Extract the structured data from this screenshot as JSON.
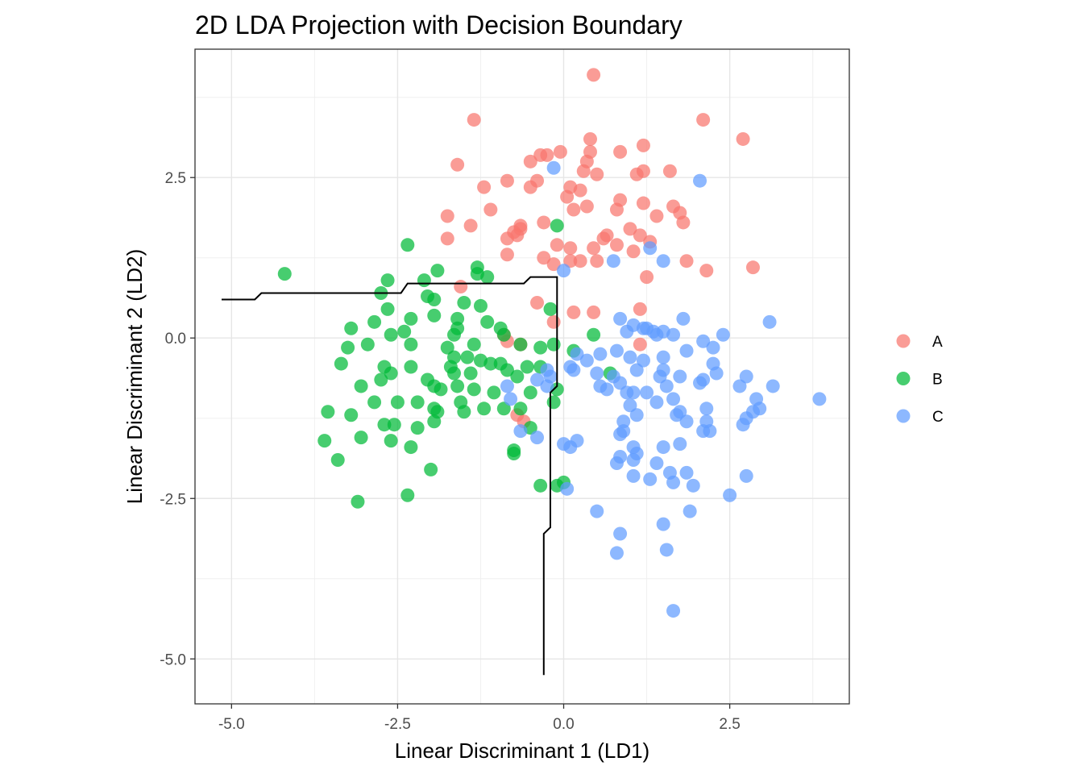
{
  "chart_data": {
    "type": "scatter",
    "title": "2D LDA Projection with Decision Boundary",
    "xlabel": "Linear Discriminant 1 (LD1)",
    "ylabel": "Linear Discriminant 2 (LD2)",
    "xlim": [
      -5.55,
      4.3
    ],
    "ylim": [
      -5.7,
      4.5
    ],
    "x_ticks": [
      -5.0,
      -2.5,
      0.0,
      2.5
    ],
    "x_tick_labels": [
      "-5.0",
      "-2.5",
      "0.0",
      "2.5"
    ],
    "y_ticks": [
      -5.0,
      -2.5,
      0.0,
      2.5
    ],
    "y_tick_labels": [
      "-5.0",
      "-2.5",
      "0.0",
      "2.5"
    ],
    "grid": true,
    "legend_position": "right",
    "series": [
      {
        "name": "A",
        "color": "#F8766D",
        "points": [
          [
            0.45,
            4.1
          ],
          [
            -1.35,
            3.4
          ],
          [
            2.1,
            3.4
          ],
          [
            2.7,
            3.1
          ],
          [
            0.4,
            3.1
          ],
          [
            1.2,
            3.0
          ],
          [
            0.85,
            2.9
          ],
          [
            0.4,
            2.9
          ],
          [
            -0.05,
            2.9
          ],
          [
            -0.35,
            2.85
          ],
          [
            -0.25,
            2.85
          ],
          [
            -0.5,
            2.75
          ],
          [
            0.35,
            2.75
          ],
          [
            -1.6,
            2.7
          ],
          [
            0.3,
            2.6
          ],
          [
            0.5,
            2.55
          ],
          [
            1.1,
            2.55
          ],
          [
            1.2,
            2.6
          ],
          [
            1.6,
            2.6
          ],
          [
            -0.85,
            2.45
          ],
          [
            -0.5,
            2.35
          ],
          [
            -0.4,
            2.45
          ],
          [
            -1.2,
            2.35
          ],
          [
            0.1,
            2.35
          ],
          [
            0.25,
            2.3
          ],
          [
            0.05,
            2.2
          ],
          [
            0.35,
            2.05
          ],
          [
            0.85,
            2.15
          ],
          [
            0.8,
            2.0
          ],
          [
            1.2,
            2.1
          ],
          [
            1.65,
            2.05
          ],
          [
            1.75,
            1.95
          ],
          [
            -1.1,
            2.0
          ],
          [
            0.15,
            2.0
          ],
          [
            -1.75,
            1.9
          ],
          [
            1.4,
            1.9
          ],
          [
            1.8,
            1.8
          ],
          [
            -1.4,
            1.75
          ],
          [
            -0.3,
            1.8
          ],
          [
            -0.65,
            1.75
          ],
          [
            -0.75,
            1.65
          ],
          [
            -0.65,
            1.7
          ],
          [
            -0.7,
            1.6
          ],
          [
            -0.85,
            1.55
          ],
          [
            0.6,
            1.55
          ],
          [
            0.65,
            1.6
          ],
          [
            1.0,
            1.7
          ],
          [
            1.15,
            1.6
          ],
          [
            1.3,
            1.5
          ],
          [
            -1.75,
            1.55
          ],
          [
            -0.1,
            1.45
          ],
          [
            0.1,
            1.4
          ],
          [
            0.45,
            1.4
          ],
          [
            0.8,
            1.45
          ],
          [
            1.05,
            1.35
          ],
          [
            -0.85,
            1.3
          ],
          [
            -0.3,
            1.25
          ],
          [
            -0.15,
            1.15
          ],
          [
            0.1,
            1.2
          ],
          [
            0.25,
            1.2
          ],
          [
            0.5,
            1.2
          ],
          [
            1.85,
            1.2
          ],
          [
            2.85,
            1.1
          ],
          [
            2.15,
            1.05
          ],
          [
            1.25,
            0.95
          ],
          [
            -1.55,
            0.8
          ],
          [
            0.15,
            0.4
          ],
          [
            -0.4,
            0.55
          ],
          [
            0.45,
            0.4
          ],
          [
            1.15,
            0.45
          ],
          [
            -0.15,
            0.25
          ],
          [
            -0.9,
            0.05
          ],
          [
            -0.85,
            -0.05
          ],
          [
            -0.65,
            -0.1
          ],
          [
            1.15,
            -0.1
          ],
          [
            -0.6,
            -1.3
          ],
          [
            -0.7,
            -1.2
          ]
        ]
      },
      {
        "name": "B",
        "color": "#00BA38",
        "points": [
          [
            -4.2,
            1.0
          ],
          [
            -2.35,
            1.45
          ],
          [
            -0.1,
            1.75
          ],
          [
            -1.3,
            1.1
          ],
          [
            -1.9,
            1.05
          ],
          [
            -2.65,
            0.9
          ],
          [
            -2.1,
            0.9
          ],
          [
            -1.15,
            0.95
          ],
          [
            -1.3,
            1.0
          ],
          [
            -2.75,
            0.7
          ],
          [
            -2.05,
            0.65
          ],
          [
            -1.95,
            0.6
          ],
          [
            -2.65,
            0.45
          ],
          [
            -1.5,
            0.55
          ],
          [
            -1.25,
            0.5
          ],
          [
            -0.2,
            0.45
          ],
          [
            -2.3,
            0.3
          ],
          [
            -2.85,
            0.25
          ],
          [
            -2.4,
            0.1
          ],
          [
            -1.95,
            0.35
          ],
          [
            -1.6,
            0.3
          ],
          [
            -1.6,
            0.15
          ],
          [
            -3.2,
            0.15
          ],
          [
            -2.6,
            0.05
          ],
          [
            -1.15,
            0.25
          ],
          [
            -0.95,
            0.15
          ],
          [
            -0.9,
            0.05
          ],
          [
            -1.65,
            0.05
          ],
          [
            0.45,
            0.05
          ],
          [
            -3.25,
            -0.15
          ],
          [
            -2.95,
            -0.1
          ],
          [
            -2.3,
            -0.1
          ],
          [
            -1.75,
            -0.15
          ],
          [
            -1.35,
            -0.1
          ],
          [
            -0.65,
            -0.1
          ],
          [
            -0.15,
            -0.1
          ],
          [
            -1.65,
            -0.3
          ],
          [
            -1.45,
            -0.3
          ],
          [
            -1.25,
            -0.35
          ],
          [
            -1.1,
            -0.4
          ],
          [
            -0.35,
            -0.15
          ],
          [
            0.15,
            -0.2
          ],
          [
            -3.35,
            -0.4
          ],
          [
            -2.7,
            -0.45
          ],
          [
            -2.3,
            -0.45
          ],
          [
            -1.7,
            -0.45
          ],
          [
            -1.65,
            -0.55
          ],
          [
            -0.95,
            -0.4
          ],
          [
            -0.55,
            -0.45
          ],
          [
            -0.85,
            -0.5
          ],
          [
            -0.35,
            -0.45
          ],
          [
            -2.6,
            -0.55
          ],
          [
            -2.75,
            -0.65
          ],
          [
            -3.05,
            -0.75
          ],
          [
            -2.05,
            -0.65
          ],
          [
            -1.4,
            -0.55
          ],
          [
            -0.7,
            -0.6
          ],
          [
            0.7,
            -0.55
          ],
          [
            -1.95,
            -0.75
          ],
          [
            -1.6,
            -0.75
          ],
          [
            -1.85,
            -0.8
          ],
          [
            -1.35,
            -0.8
          ],
          [
            -1.05,
            -0.85
          ],
          [
            -0.5,
            -0.85
          ],
          [
            -0.1,
            -0.8
          ],
          [
            -3.55,
            -1.15
          ],
          [
            -3.2,
            -1.2
          ],
          [
            -2.85,
            -1.0
          ],
          [
            -2.5,
            -1.0
          ],
          [
            -2.2,
            -1.0
          ],
          [
            -1.95,
            -1.1
          ],
          [
            -1.9,
            -1.15
          ],
          [
            -1.55,
            -1.0
          ],
          [
            -1.5,
            -1.15
          ],
          [
            -1.2,
            -1.1
          ],
          [
            -0.9,
            -1.1
          ],
          [
            -0.65,
            -1.1
          ],
          [
            -0.15,
            -1.0
          ],
          [
            -2.7,
            -1.35
          ],
          [
            -2.55,
            -1.35
          ],
          [
            -2.2,
            -1.4
          ],
          [
            -1.95,
            -1.3
          ],
          [
            -0.5,
            -1.4
          ],
          [
            -3.6,
            -1.6
          ],
          [
            -3.05,
            -1.55
          ],
          [
            -2.6,
            -1.6
          ],
          [
            -2.3,
            -1.7
          ],
          [
            -0.75,
            -1.8
          ],
          [
            -0.75,
            -1.75
          ],
          [
            -3.4,
            -1.9
          ],
          [
            -2.0,
            -2.05
          ],
          [
            -0.35,
            -2.3
          ],
          [
            -0.1,
            -2.3
          ],
          [
            0.0,
            -2.25
          ],
          [
            -3.1,
            -2.55
          ],
          [
            -2.35,
            -2.45
          ]
        ]
      },
      {
        "name": "C",
        "color": "#619CFF",
        "points": [
          [
            -0.15,
            2.65
          ],
          [
            2.05,
            2.45
          ],
          [
            0.0,
            1.05
          ],
          [
            0.75,
            1.2
          ],
          [
            1.3,
            1.4
          ],
          [
            1.5,
            1.2
          ],
          [
            0.85,
            0.3
          ],
          [
            1.05,
            0.2
          ],
          [
            1.2,
            0.15
          ],
          [
            1.25,
            0.15
          ],
          [
            1.35,
            0.1
          ],
          [
            1.5,
            0.1
          ],
          [
            1.4,
            0.05
          ],
          [
            1.8,
            0.3
          ],
          [
            2.4,
            0.05
          ],
          [
            3.1,
            0.25
          ],
          [
            0.95,
            0.1
          ],
          [
            1.65,
            0.05
          ],
          [
            2.1,
            -0.05
          ],
          [
            2.25,
            -0.15
          ],
          [
            1.85,
            -0.2
          ],
          [
            0.8,
            -0.2
          ],
          [
            0.55,
            -0.25
          ],
          [
            1.0,
            -0.3
          ],
          [
            1.2,
            -0.35
          ],
          [
            1.5,
            -0.3
          ],
          [
            2.25,
            -0.4
          ],
          [
            0.2,
            -0.25
          ],
          [
            0.35,
            -0.35
          ],
          [
            1.5,
            -0.5
          ],
          [
            0.1,
            -0.45
          ],
          [
            0.15,
            -0.5
          ],
          [
            0.5,
            -0.55
          ],
          [
            0.75,
            -0.6
          ],
          [
            1.1,
            -0.5
          ],
          [
            1.45,
            -0.6
          ],
          [
            1.75,
            -0.6
          ],
          [
            2.3,
            -0.55
          ],
          [
            2.05,
            -0.7
          ],
          [
            2.1,
            -0.65
          ],
          [
            -0.25,
            -0.5
          ],
          [
            -0.2,
            -0.6
          ],
          [
            -0.4,
            -0.65
          ],
          [
            -0.25,
            -0.75
          ],
          [
            0.55,
            -0.75
          ],
          [
            0.65,
            -0.8
          ],
          [
            0.85,
            -0.7
          ],
          [
            0.95,
            -0.85
          ],
          [
            1.05,
            -0.85
          ],
          [
            1.25,
            -0.85
          ],
          [
            1.55,
            -0.75
          ],
          [
            2.65,
            -0.75
          ],
          [
            2.75,
            -0.6
          ],
          [
            2.9,
            -0.95
          ],
          [
            3.15,
            -0.75
          ],
          [
            3.85,
            -0.95
          ],
          [
            -0.85,
            -0.75
          ],
          [
            -0.8,
            -0.95
          ],
          [
            1.0,
            -1.05
          ],
          [
            1.4,
            -1.0
          ],
          [
            1.65,
            -0.95
          ],
          [
            1.75,
            -1.15
          ],
          [
            2.15,
            -1.1
          ],
          [
            2.85,
            -1.15
          ],
          [
            2.95,
            -1.1
          ],
          [
            1.1,
            -1.2
          ],
          [
            1.7,
            -1.2
          ],
          [
            1.85,
            -1.3
          ],
          [
            0.9,
            -1.3
          ],
          [
            2.75,
            -1.25
          ],
          [
            2.15,
            -1.3
          ],
          [
            2.7,
            -1.35
          ],
          [
            2.2,
            -1.45
          ],
          [
            2.1,
            -1.45
          ],
          [
            0.85,
            -1.5
          ],
          [
            0.9,
            -1.45
          ],
          [
            -0.65,
            -1.45
          ],
          [
            -0.4,
            -1.55
          ],
          [
            0.0,
            -1.65
          ],
          [
            0.1,
            -1.7
          ],
          [
            0.2,
            -1.6
          ],
          [
            1.05,
            -1.7
          ],
          [
            1.1,
            -1.8
          ],
          [
            1.5,
            -1.7
          ],
          [
            1.75,
            -1.65
          ],
          [
            0.85,
            -1.85
          ],
          [
            1.05,
            -1.9
          ],
          [
            1.4,
            -1.95
          ],
          [
            1.85,
            -2.1
          ],
          [
            0.8,
            -1.95
          ],
          [
            1.6,
            -2.1
          ],
          [
            1.05,
            -2.15
          ],
          [
            1.3,
            -2.2
          ],
          [
            1.65,
            -2.25
          ],
          [
            1.95,
            -2.3
          ],
          [
            2.75,
            -2.15
          ],
          [
            2.5,
            -2.45
          ],
          [
            0.05,
            -2.35
          ],
          [
            0.5,
            -2.7
          ],
          [
            1.9,
            -2.7
          ],
          [
            1.5,
            -2.9
          ],
          [
            0.85,
            -3.05
          ],
          [
            1.55,
            -3.3
          ],
          [
            0.8,
            -3.35
          ],
          [
            1.65,
            -4.25
          ]
        ]
      }
    ],
    "boundary": [
      [
        -5.15,
        0.6
      ],
      [
        -4.65,
        0.6
      ],
      [
        -4.55,
        0.7
      ],
      [
        -3.45,
        0.7
      ],
      [
        -2.45,
        0.7
      ],
      [
        -2.35,
        0.85
      ],
      [
        -1.0,
        0.85
      ],
      [
        -0.6,
        0.85
      ],
      [
        -0.5,
        0.95
      ],
      [
        -0.1,
        0.95
      ],
      [
        -0.1,
        -0.75
      ],
      [
        -0.2,
        -0.85
      ],
      [
        -0.2,
        -2.95
      ],
      [
        -0.3,
        -3.05
      ],
      [
        -0.3,
        -5.25
      ],
      [
        -0.3,
        -5.25
      ]
    ]
  }
}
